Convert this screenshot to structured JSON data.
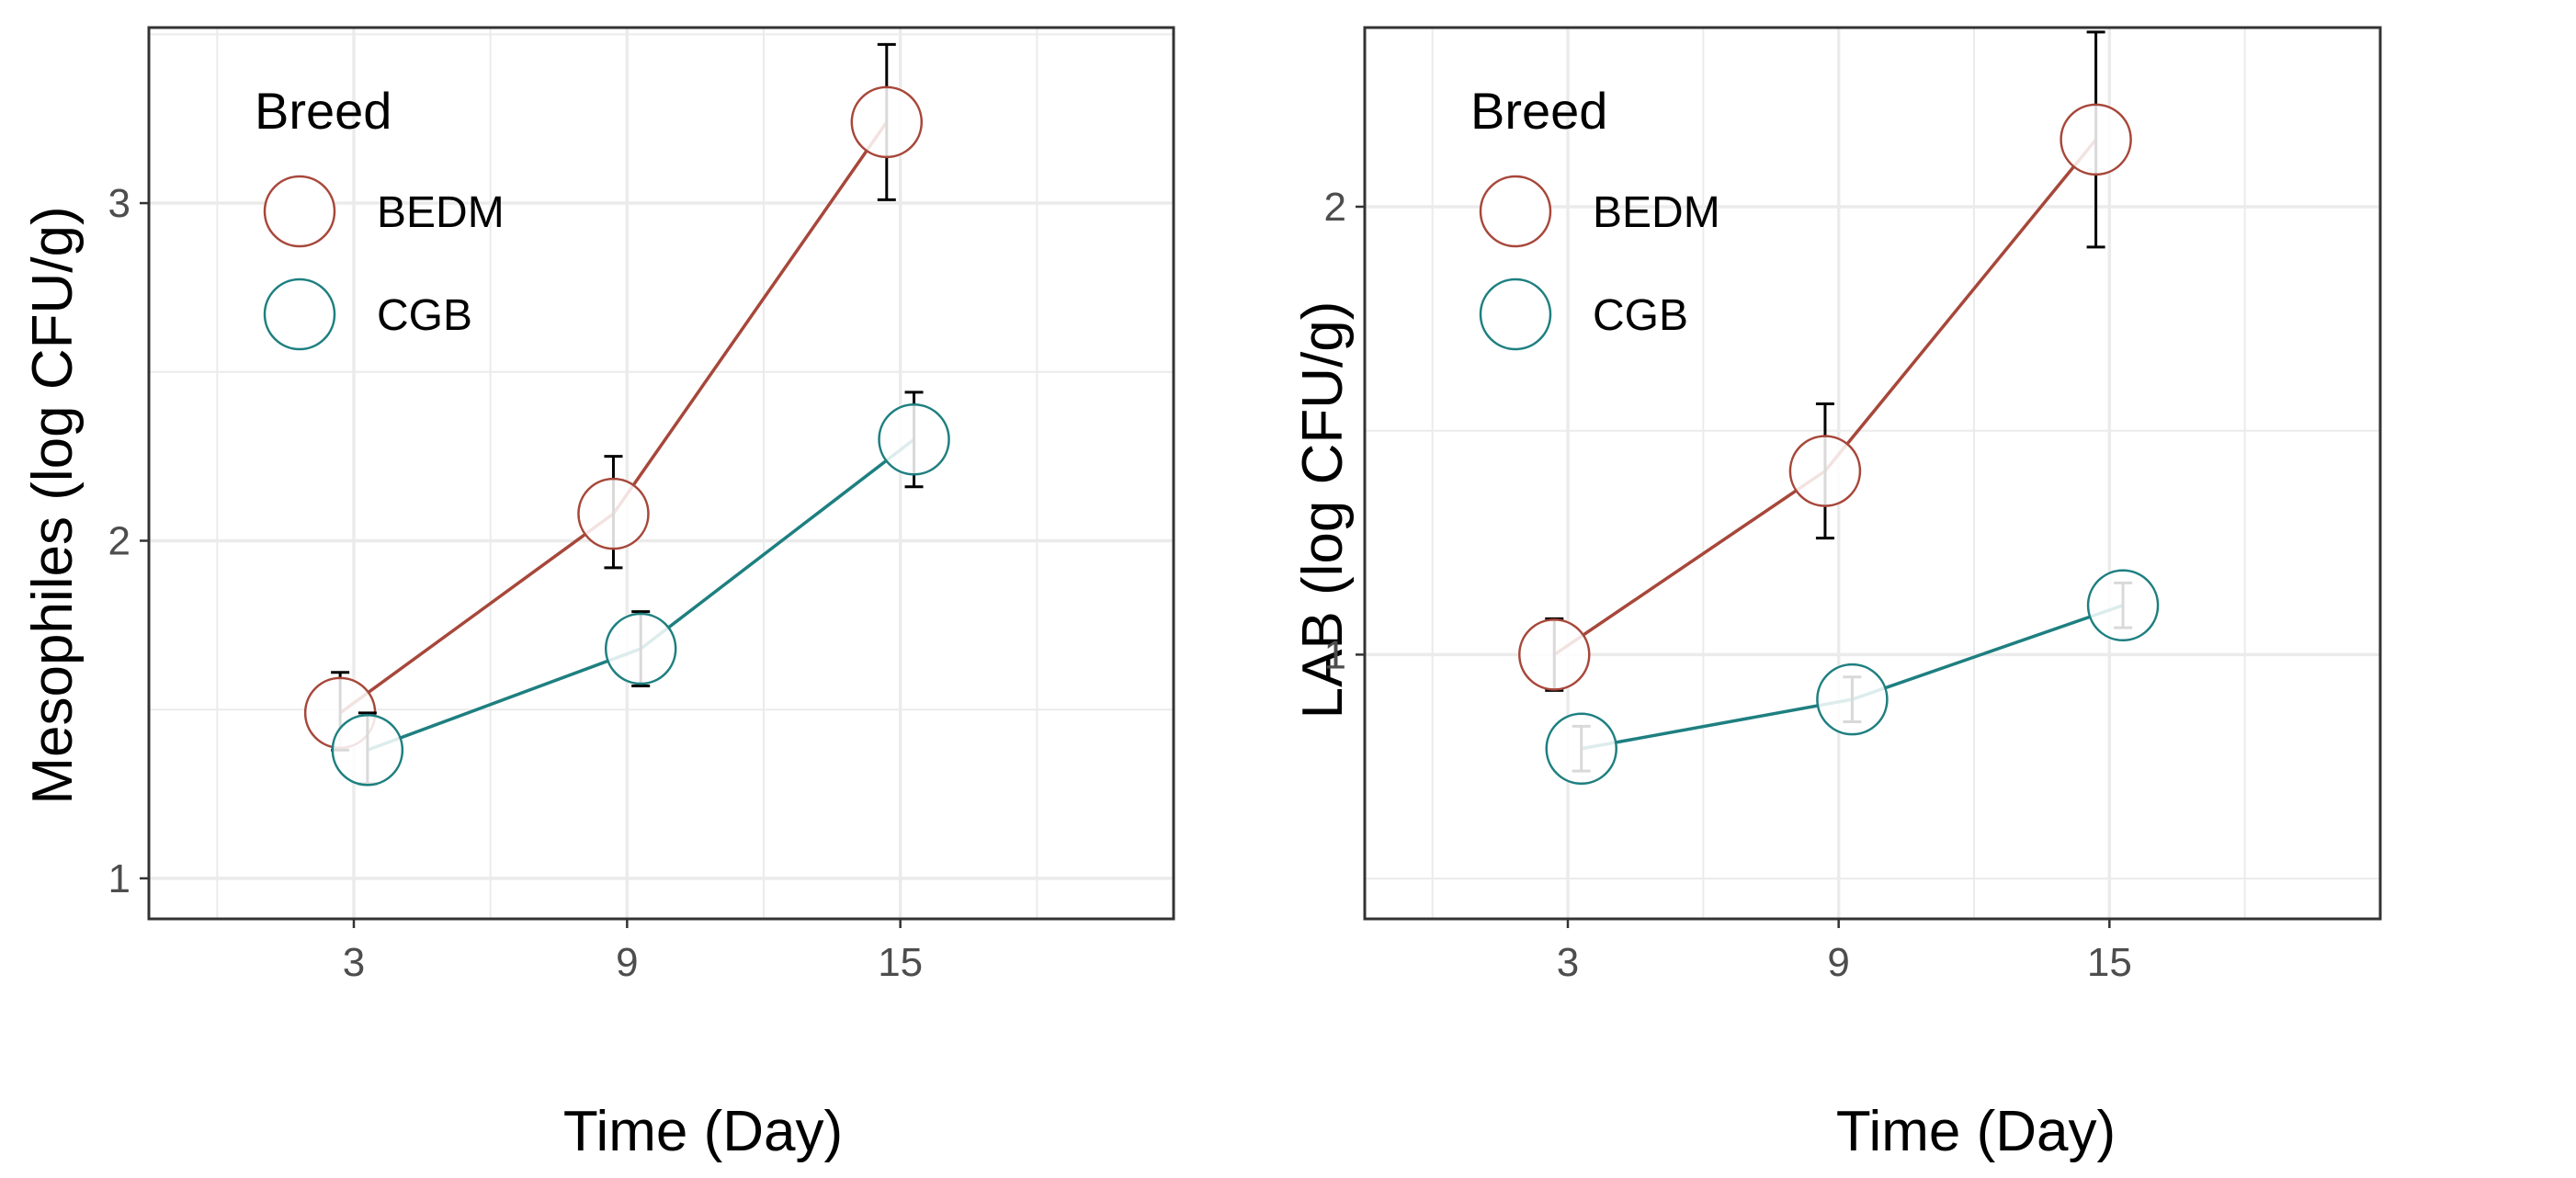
{
  "colors": {
    "BEDM": "#a7473a",
    "CGB": "#1e7f80",
    "grid": "#ebebeb",
    "panel_border": "#333333",
    "error_bar": "#000000"
  },
  "chart_data": [
    {
      "type": "line",
      "xlabel": "Time (Day)",
      "ylabel": "Mesophiles (log CFU/g)",
      "x": [
        3,
        9,
        15
      ],
      "x_ticks": [
        "3",
        "9",
        "15"
      ],
      "xlim": [
        -1.5,
        21
      ],
      "y_ticks": [
        "1",
        "2",
        "3"
      ],
      "y_tick_values": [
        1,
        2,
        3
      ],
      "ylim": [
        0.88,
        3.52
      ],
      "grid": true,
      "legend": {
        "title": "Breed",
        "position": "top-left",
        "entries": [
          "BEDM",
          "CGB"
        ]
      },
      "series": [
        {
          "name": "BEDM",
          "values": [
            1.49,
            2.08,
            3.24
          ],
          "error": [
            [
              1.38,
              1.61
            ],
            [
              1.92,
              2.25
            ],
            [
              3.01,
              3.47
            ]
          ]
        },
        {
          "name": "CGB",
          "values": [
            1.38,
            1.68,
            2.3
          ],
          "error": [
            [
              1.28,
              1.49
            ],
            [
              1.57,
              1.79
            ],
            [
              2.16,
              2.44
            ]
          ]
        }
      ]
    },
    {
      "type": "line",
      "xlabel": "Time (Day)",
      "ylabel": "LAB (log CFU/g)",
      "x": [
        3,
        9,
        15
      ],
      "x_ticks": [
        "3",
        "9",
        "15"
      ],
      "xlim": [
        -1.5,
        21
      ],
      "y_ticks": [
        "1",
        "2"
      ],
      "y_tick_values": [
        1,
        2
      ],
      "ylim": [
        0.41,
        2.4
      ],
      "grid": true,
      "legend": {
        "title": "Breed",
        "position": "top-left",
        "entries": [
          "BEDM",
          "CGB"
        ]
      },
      "series": [
        {
          "name": "BEDM",
          "values": [
            1.0,
            1.41,
            2.15
          ],
          "error": [
            [
              0.92,
              1.08
            ],
            [
              1.26,
              1.56
            ],
            [
              1.91,
              2.39
            ]
          ]
        },
        {
          "name": "CGB",
          "values": [
            0.79,
            0.9,
            1.11
          ],
          "error": [
            [
              0.74,
              0.84
            ],
            [
              0.85,
              0.95
            ],
            [
              1.06,
              1.16
            ]
          ]
        }
      ]
    }
  ]
}
